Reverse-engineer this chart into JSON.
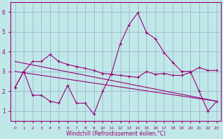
{
  "bg_color": "#c0e8e8",
  "line_color": "#990077",
  "grid_color": "#99aacc",
  "xlabel": "Windchill (Refroidissement éolien,°C)",
  "xlim": [
    -0.5,
    23.5
  ],
  "ylim": [
    0.5,
    6.5
  ],
  "yticks": [
    1,
    2,
    3,
    4,
    5,
    6
  ],
  "xticks": [
    0,
    1,
    2,
    3,
    4,
    5,
    6,
    7,
    8,
    9,
    10,
    11,
    12,
    13,
    14,
    15,
    16,
    17,
    18,
    19,
    20,
    21,
    22,
    23
  ],
  "spike_series": [
    2.2,
    3.0,
    1.8,
    1.8,
    1.5,
    1.4,
    2.3,
    1.4,
    1.4,
    0.85,
    2.0,
    2.9,
    4.4,
    5.35,
    5.95,
    4.95,
    4.65,
    3.95,
    3.45,
    3.0,
    3.0,
    2.0,
    1.0,
    1.5
  ],
  "flat_series": [
    2.2,
    3.0,
    3.5,
    3.5,
    3.85,
    3.5,
    3.35,
    3.25,
    3.15,
    3.05,
    2.9,
    2.85,
    2.8,
    2.75,
    2.7,
    3.0,
    2.85,
    2.9,
    2.8,
    2.8,
    2.95,
    3.2,
    3.05,
    3.05
  ],
  "trend1_start": 3.5,
  "trend1_end": 1.5,
  "trend2_start": 3.0,
  "trend2_end": 1.5
}
